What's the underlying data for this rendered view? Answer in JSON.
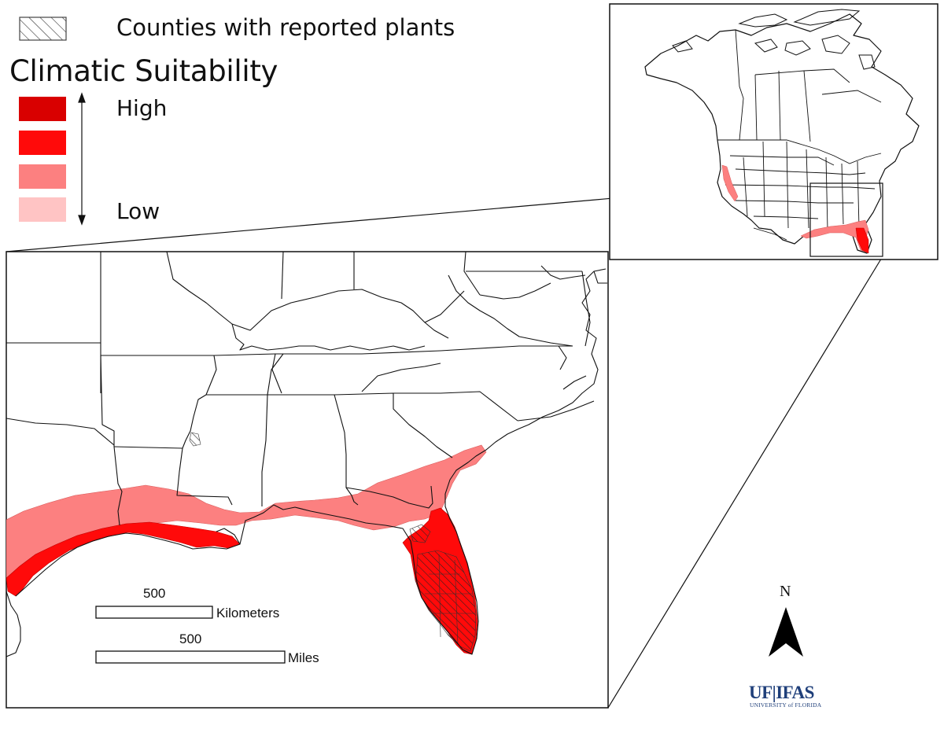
{
  "legend": {
    "hatch_label": "Counties with reported plants",
    "title": "Climatic Suitability",
    "high_label": "High",
    "low_label": "Low",
    "classes": [
      {
        "level": 4,
        "color": "#d90000"
      },
      {
        "level": 3,
        "color": "#ff0a0a"
      },
      {
        "level": 2,
        "color": "#fc8080"
      },
      {
        "level": 1,
        "color": "#ffc4c4"
      }
    ]
  },
  "scale_bar": {
    "km_value": "500",
    "km_unit": "Kilometers",
    "mi_value": "500",
    "mi_unit": "Miles"
  },
  "north_arrow": {
    "label": "N"
  },
  "logo": {
    "main": "UF|IFAS",
    "sub": "UNIVERSITY of FLORIDA"
  },
  "colors": {
    "outline": "#111111",
    "suitability_high": "#d90000",
    "suitability_mid_high": "#ff0a0a",
    "suitability_mid_low": "#fc8080",
    "suitability_low": "#ffc4c4",
    "logo_blue": "#1f3f7a"
  }
}
